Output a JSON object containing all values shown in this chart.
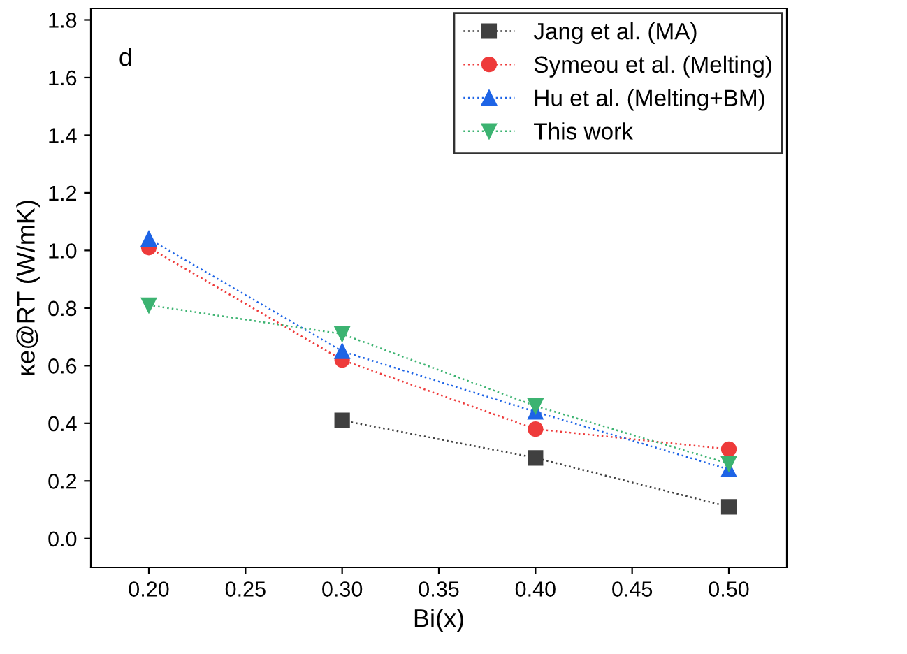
{
  "chart_data": {
    "type": "line",
    "xlabel": "Bi(x)",
    "ylabel": "κe@RT (W/mK)",
    "annotations": [
      "d"
    ],
    "xlim": [
      0.17,
      0.53
    ],
    "xticks": [
      {
        "value": 0.2,
        "label": "0.20"
      },
      {
        "value": 0.25,
        "label": "0.25"
      },
      {
        "value": 0.3,
        "label": "0.30"
      },
      {
        "value": 0.35,
        "label": "0.35"
      },
      {
        "value": 0.4,
        "label": "0.40"
      },
      {
        "value": 0.45,
        "label": "0.45"
      },
      {
        "value": 0.5,
        "label": "0.50"
      }
    ],
    "ylim": [
      -0.1,
      1.84
    ],
    "yticks": [
      {
        "value": 0,
        "label": "0.0"
      },
      {
        "value": 0.2,
        "label": "0.2"
      },
      {
        "value": 0.4,
        "label": "0.4"
      },
      {
        "value": 0.6,
        "label": "0.6"
      },
      {
        "value": 0.8,
        "label": "0.8"
      },
      {
        "value": 1.0,
        "label": "1.0"
      },
      {
        "value": 1.2,
        "label": "1.2"
      },
      {
        "value": 1.4,
        "label": "1.4"
      },
      {
        "value": 1.6,
        "label": "1.6"
      },
      {
        "value": 1.8,
        "label": "1.8"
      }
    ],
    "legend": "top right",
    "line_style": "dotted",
    "grid": false,
    "series": [
      {
        "name": "Jang et al. (MA)",
        "color": "#404040",
        "marker": "square",
        "x": [
          0.3,
          0.4,
          0.5
        ],
        "values": [
          0.41,
          0.28,
          0.11
        ]
      },
      {
        "name": "Symeou et al. (Melting)",
        "color": "#ee3b3b",
        "marker": "circle",
        "x": [
          0.2,
          0.3,
          0.4,
          0.5
        ],
        "values": [
          1.01,
          0.62,
          0.38,
          0.31
        ]
      },
      {
        "name": "Hu et al. (Melting+BM)",
        "color": "#1e64e6",
        "marker": "triangle",
        "x": [
          0.2,
          0.3,
          0.4,
          0.5
        ],
        "values": [
          1.04,
          0.65,
          0.44,
          0.24
        ]
      },
      {
        "name": "This work",
        "color": "#3cb371",
        "marker": "triangle_down",
        "x": [
          0.2,
          0.3,
          0.4,
          0.5
        ],
        "values": [
          0.81,
          0.71,
          0.46,
          0.26
        ]
      }
    ]
  }
}
